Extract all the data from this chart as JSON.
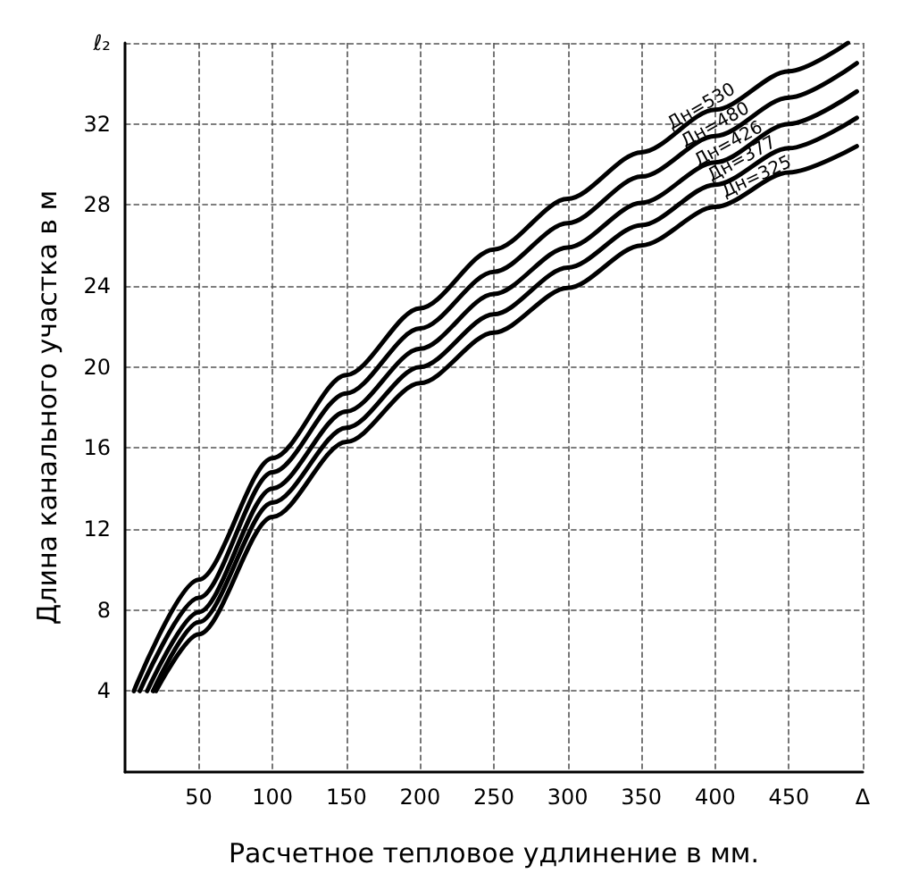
{
  "chart_data": {
    "type": "line",
    "xlabel": "Расчетное тепловое удлинение в мм.",
    "ylabel": "Длина канального участка в м",
    "xlim": [
      0,
      500
    ],
    "ylim": [
      0,
      36
    ],
    "xticks": [
      50,
      100,
      150,
      200,
      250,
      300,
      350,
      400,
      450,
      {
        "value": 500,
        "label": "Δ"
      }
    ],
    "yticks": [
      4,
      8,
      12,
      16,
      20,
      24,
      28,
      32,
      {
        "value": 36,
        "label": "ℓ₂"
      }
    ],
    "grid": true,
    "legend": false,
    "marker": "none",
    "line_style": "solid",
    "series": [
      {
        "name": "Дн=530",
        "color": "#000000",
        "x": [
          6,
          50,
          100,
          150,
          200,
          250,
          300,
          350,
          400,
          450,
          490
        ],
        "values": [
          4,
          9.5,
          15.5,
          19.6,
          22.9,
          25.8,
          28.3,
          30.6,
          32.7,
          34.6,
          36
        ]
      },
      {
        "name": "Дн=480",
        "color": "#000000",
        "x": [
          10,
          50,
          100,
          150,
          200,
          250,
          300,
          350,
          400,
          450,
          496
        ],
        "values": [
          4,
          8.6,
          14.8,
          18.7,
          21.9,
          24.7,
          27.1,
          29.4,
          31.4,
          33.3,
          35
        ]
      },
      {
        "name": "Дн=426",
        "color": "#000000",
        "x": [
          15,
          50,
          100,
          150,
          200,
          250,
          300,
          350,
          400,
          450,
          496
        ],
        "values": [
          4,
          7.9,
          14,
          17.8,
          20.9,
          23.6,
          25.9,
          28.1,
          30.1,
          32,
          33.6
        ]
      },
      {
        "name": "Дн=377",
        "color": "#000000",
        "x": [
          19,
          50,
          100,
          150,
          200,
          250,
          300,
          350,
          400,
          450,
          496
        ],
        "values": [
          4,
          7.4,
          13.3,
          17,
          20,
          22.6,
          24.9,
          27,
          29,
          30.8,
          32.3
        ]
      },
      {
        "name": "Дн=325",
        "color": "#000000",
        "x": [
          21,
          50,
          100,
          150,
          200,
          250,
          300,
          350,
          400,
          450,
          496
        ],
        "values": [
          4,
          6.8,
          12.6,
          16.3,
          19.2,
          21.7,
          23.9,
          26,
          27.9,
          29.6,
          30.9
        ]
      }
    ]
  }
}
